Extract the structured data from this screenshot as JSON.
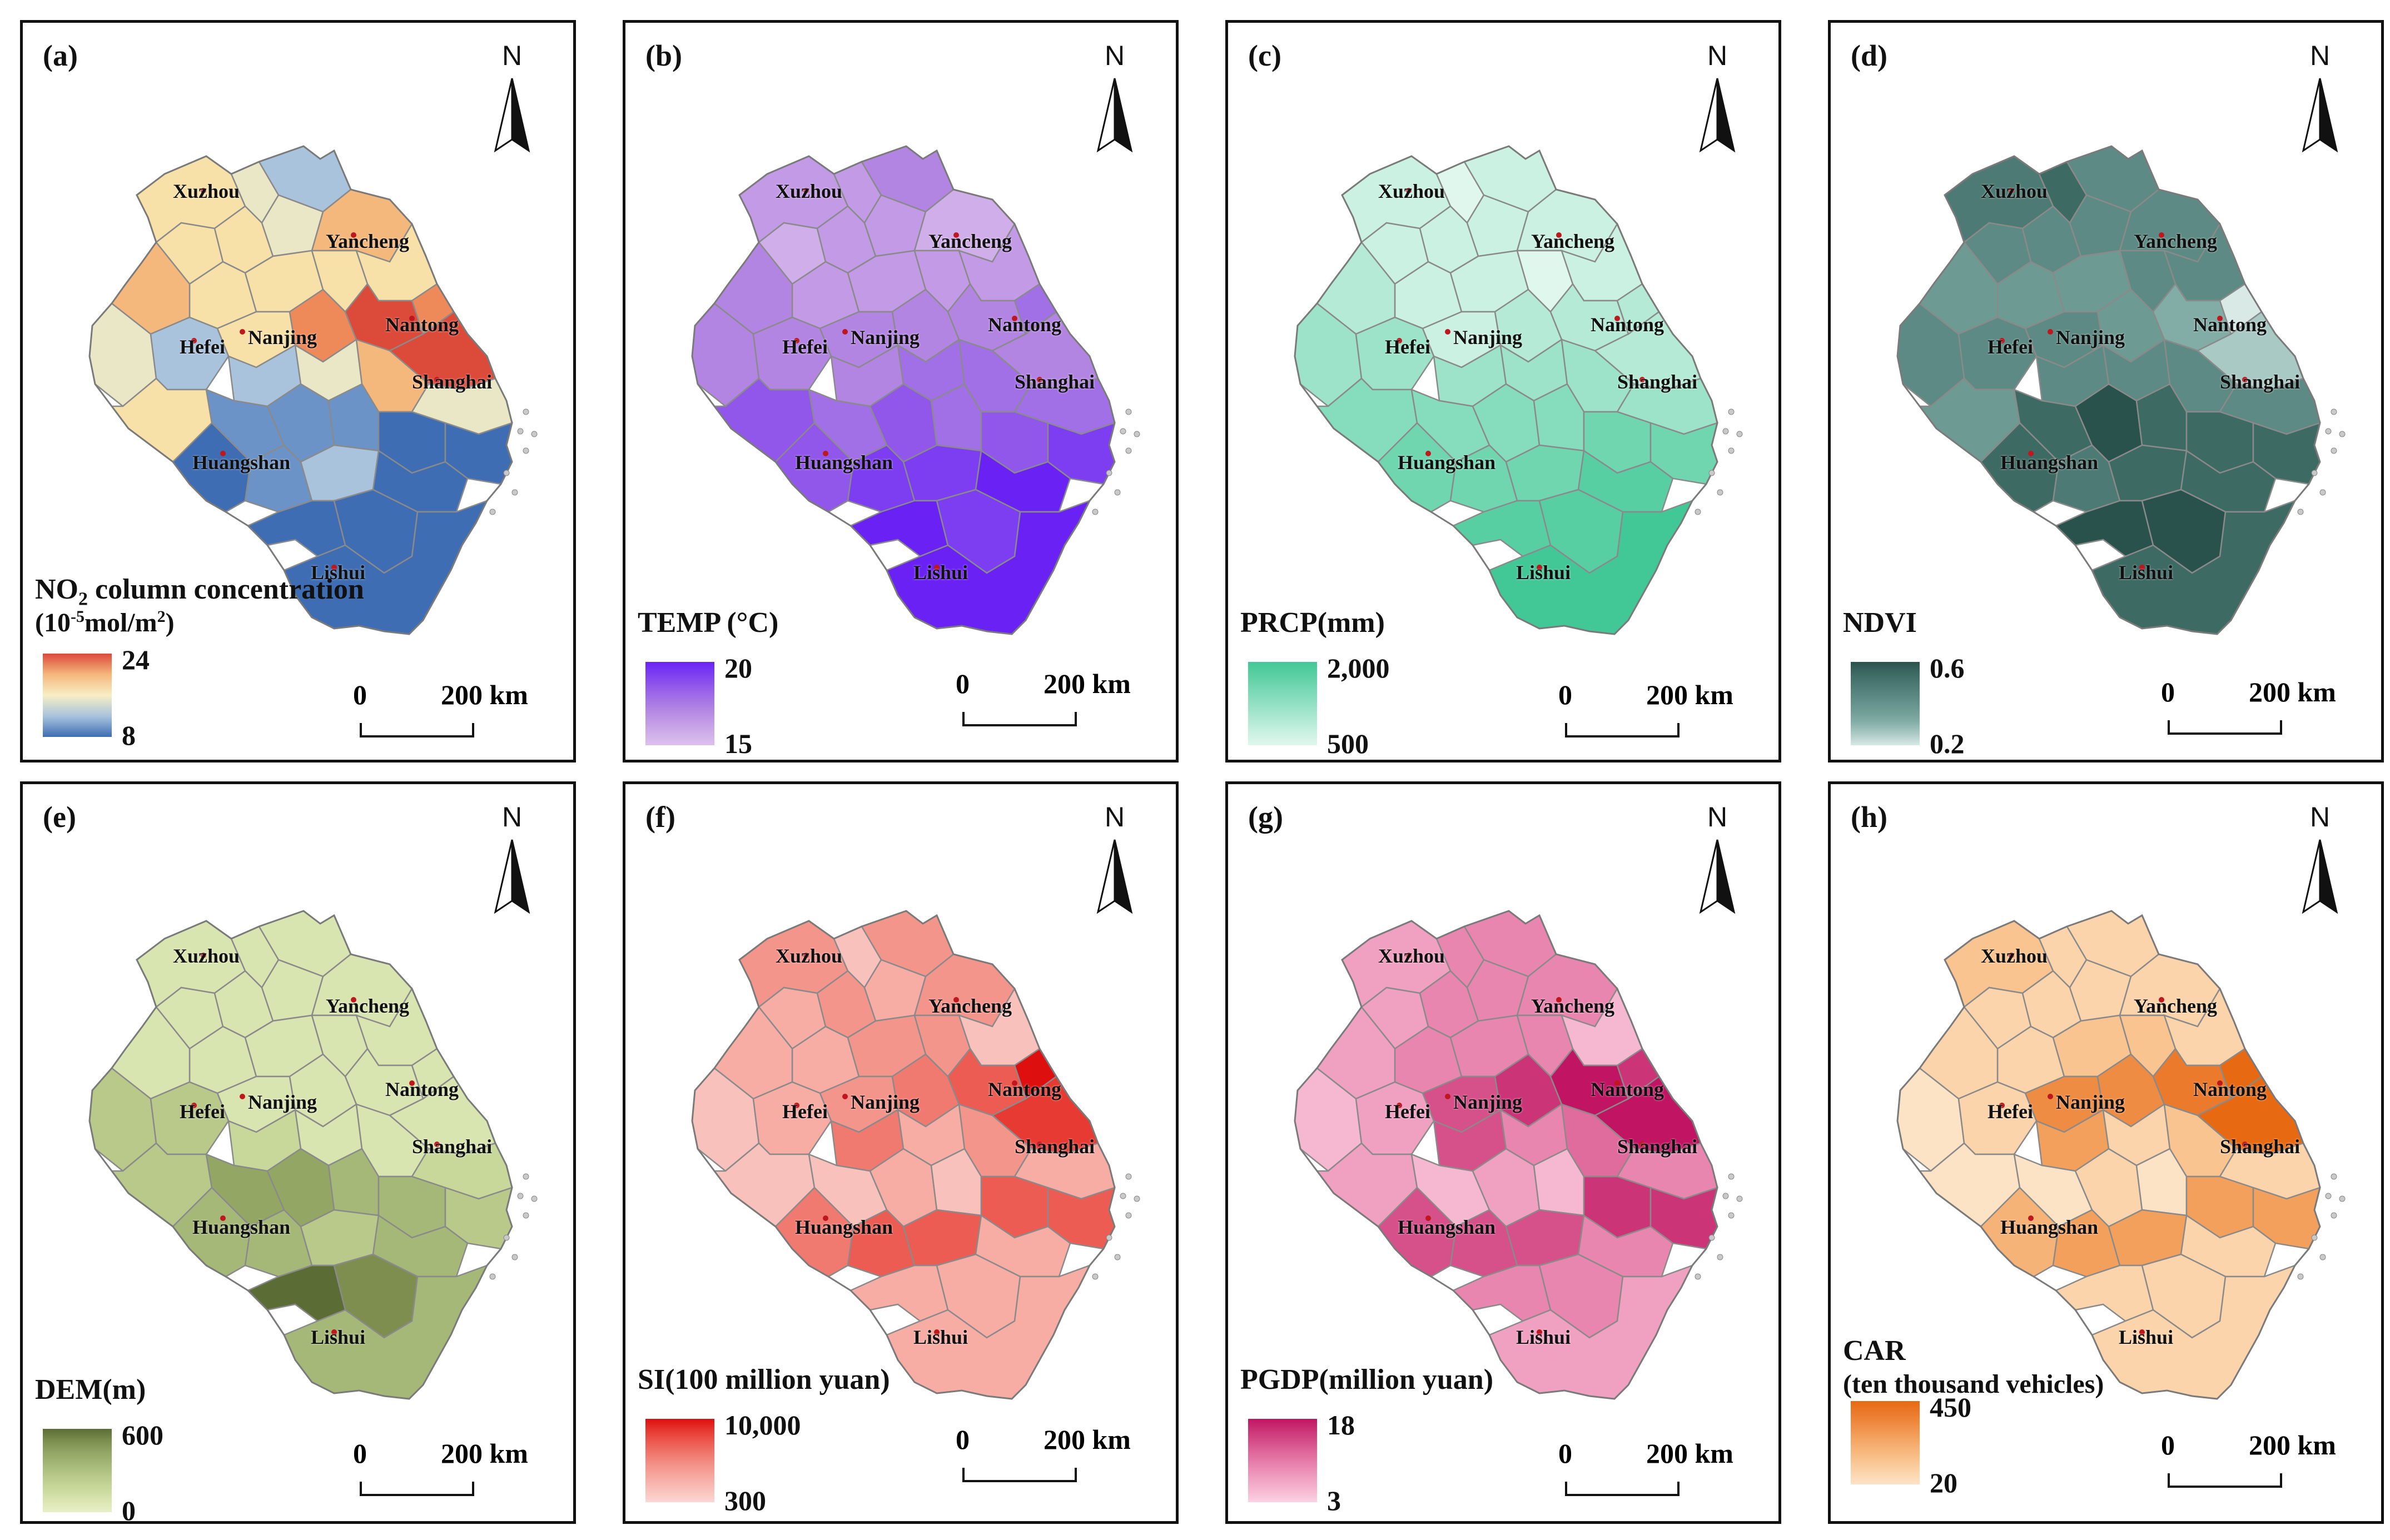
{
  "cities": [
    {
      "key": "xuzhou",
      "name": "Xuzhou"
    },
    {
      "key": "yancheng",
      "name": "Yancheng"
    },
    {
      "key": "nantong",
      "name": "Nantong"
    },
    {
      "key": "hefei",
      "name": "Hefei"
    },
    {
      "key": "nanjing",
      "name": "Nanjing"
    },
    {
      "key": "shanghai",
      "name": "Shanghai"
    },
    {
      "key": "huangshan",
      "name": "Huangshan"
    },
    {
      "key": "lishui",
      "name": "Lishui"
    }
  ],
  "north_label": "N",
  "scale_bar": {
    "zero": "0",
    "distance": "200 km"
  },
  "panels": [
    {
      "id": "a",
      "label": "(a)",
      "legend_title": "NO",
      "legend_sub_html": "2",
      "legend_title_rest": " column concentration",
      "legend_unit_pre": "(10",
      "legend_unit_sup": "-5",
      "legend_unit_mid": "mol/m",
      "legend_unit_sup2": "2",
      "legend_unit_post": ")",
      "max": "24",
      "min": "8",
      "colors": [
        "#3e6db3",
        "#6b93c7",
        "#a9c3dd",
        "#e9e7c5",
        "#f7e1a8",
        "#f4b77c",
        "#ee8a5a",
        "#dc4a3a"
      ],
      "fills": [
        4,
        3,
        2,
        4,
        4,
        3,
        5,
        4,
        4,
        4,
        4,
        5,
        4,
        6,
        7,
        7,
        6,
        3,
        2,
        2,
        3,
        5,
        3,
        4,
        1,
        1,
        1,
        0,
        0,
        0,
        1,
        2,
        0,
        0,
        0,
        0
      ]
    },
    {
      "id": "b",
      "label": "(b)",
      "legend_title": "TEMP (°C)",
      "max": "20",
      "min": "15",
      "colors": [
        "#dcc1ee",
        "#cfaee9",
        "#c29ae6",
        "#b385e3",
        "#a270e6",
        "#9157ea",
        "#7c3ef0",
        "#6a22f4"
      ],
      "fills": [
        2,
        2,
        3,
        1,
        2,
        2,
        1,
        2,
        2,
        2,
        2,
        3,
        3,
        3,
        3,
        3,
        4,
        3,
        3,
        3,
        4,
        4,
        4,
        5,
        4,
        5,
        4,
        5,
        6,
        5,
        6,
        6,
        7,
        7,
        6,
        7
      ]
    },
    {
      "id": "c",
      "label": "(c)",
      "legend_title": "PRCP(mm)",
      "max": "2,000",
      "min": "500",
      "colors": [
        "#e0f7ee",
        "#cbf1e2",
        "#b4ead6",
        "#9ce3c9",
        "#86ddbd",
        "#6fd6b0",
        "#58cfa3",
        "#42c796"
      ],
      "fills": [
        1,
        0,
        1,
        1,
        1,
        1,
        1,
        1,
        1,
        0,
        1,
        2,
        1,
        2,
        2,
        2,
        2,
        3,
        3,
        3,
        3,
        3,
        3,
        4,
        4,
        4,
        4,
        5,
        5,
        5,
        5,
        5,
        6,
        6,
        6,
        7
      ]
    },
    {
      "id": "d",
      "label": "(d)",
      "legend_title": "NDVI",
      "max": "0.6",
      "min": "0.2",
      "colors": [
        "#d8e9e6",
        "#a9c9c4",
        "#82aca6",
        "#6e9a94",
        "#5d8a84",
        "#4d7a74",
        "#3e6a64",
        "#2a524d"
      ],
      "fills": [
        5,
        6,
        4,
        4,
        4,
        4,
        4,
        3,
        3,
        4,
        4,
        3,
        4,
        3,
        2,
        1,
        0,
        4,
        4,
        4,
        4,
        4,
        4,
        3,
        6,
        7,
        6,
        6,
        6,
        6,
        5,
        6,
        6,
        7,
        7,
        6
      ]
    },
    {
      "id": "e",
      "label": "(e)",
      "legend_title": "DEM(m)",
      "max": "600",
      "min": "0",
      "colors": [
        "#e7efc8",
        "#d9e5b0",
        "#c8d89b",
        "#b8c98a",
        "#a6b877",
        "#93a664",
        "#7d8e4f",
        "#5c6c35"
      ],
      "fills": [
        1,
        1,
        1,
        1,
        1,
        1,
        1,
        1,
        1,
        1,
        1,
        1,
        1,
        1,
        1,
        1,
        1,
        3,
        3,
        2,
        1,
        1,
        2,
        3,
        5,
        5,
        4,
        4,
        3,
        4,
        4,
        3,
        4,
        7,
        6,
        4
      ]
    },
    {
      "id": "f",
      "label": "(f)",
      "legend_title": "SI(100 million yuan)",
      "max": "10,000",
      "min": "300",
      "colors": [
        "#fcd7d3",
        "#f9c1bb",
        "#f7aca4",
        "#f4958c",
        "#f07a70",
        "#ec5c52",
        "#e63a32",
        "#dd0f0f"
      ],
      "fills": [
        3,
        1,
        3,
        2,
        3,
        2,
        3,
        2,
        3,
        3,
        1,
        2,
        3,
        4,
        5,
        6,
        7,
        1,
        2,
        4,
        2,
        3,
        2,
        1,
        1,
        2,
        1,
        5,
        5,
        4,
        5,
        5,
        2,
        2,
        2,
        2
      ]
    },
    {
      "id": "g",
      "label": "(g)",
      "legend_title": "PGDP(million yuan)",
      "max": "18",
      "min": "3",
      "colors": [
        "#fbd2e3",
        "#f6b7d1",
        "#f0a0c1",
        "#e986b0",
        "#e06c9e",
        "#d6508a",
        "#cb3577",
        "#c11463"
      ],
      "fills": [
        2,
        3,
        3,
        2,
        3,
        3,
        3,
        3,
        3,
        3,
        1,
        2,
        5,
        6,
        7,
        7,
        6,
        1,
        2,
        5,
        3,
        4,
        3,
        2,
        1,
        2,
        1,
        6,
        6,
        5,
        5,
        5,
        3,
        3,
        3,
        2
      ]
    },
    {
      "id": "h",
      "label": "(h)",
      "legend_title": "CAR",
      "legend_sub": "(ten thousand vehicles)",
      "max": "450",
      "min": "20",
      "colors": [
        "#fde3c6",
        "#fbd4ab",
        "#f9c48f",
        "#f6b377",
        "#f3a05d",
        "#ef8c43",
        "#eb7a2c",
        "#e76a12"
      ],
      "fills": [
        2,
        1,
        1,
        1,
        1,
        1,
        1,
        1,
        2,
        2,
        1,
        1,
        5,
        5,
        6,
        7,
        7,
        0,
        1,
        4,
        1,
        2,
        1,
        0,
        0,
        1,
        0,
        4,
        4,
        3,
        4,
        4,
        1,
        1,
        1,
        1
      ]
    }
  ]
}
